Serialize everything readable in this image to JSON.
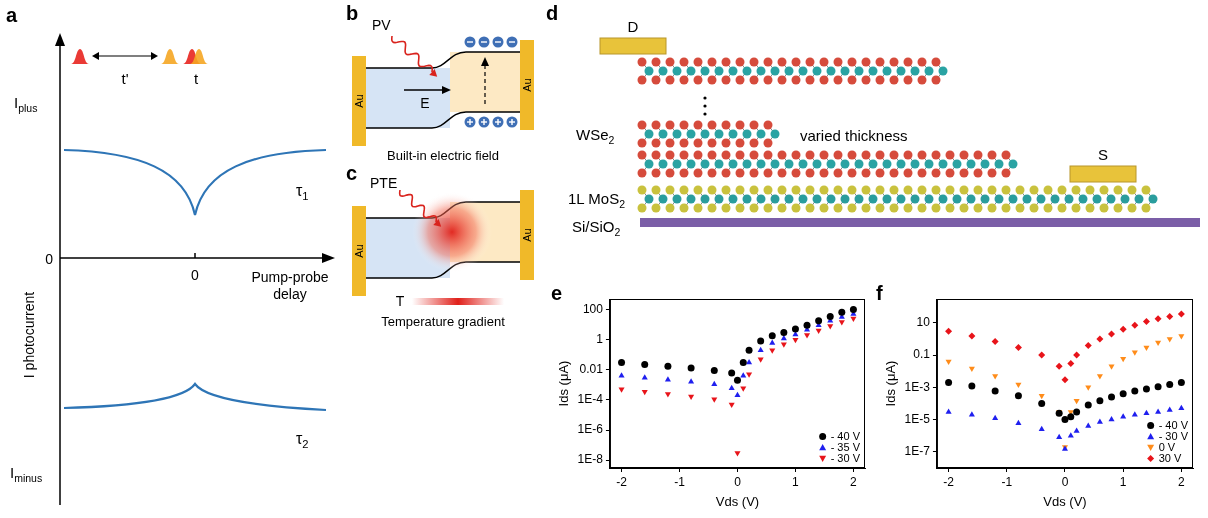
{
  "diagrams": {
    "a": {
      "label": "a",
      "top_current": {
        "main": "I",
        "sub": "plus"
      },
      "bottom_current": {
        "main": "I",
        "sub": "minus"
      },
      "y_axis_title": "I photocurrent",
      "y_zero": "0",
      "x_zero": "0",
      "x_axis_title": "Pump-probe delay",
      "pulse_delay_labels": [
        "t'",
        "t"
      ],
      "curve_labels": [
        {
          "main": "τ",
          "sub": "1"
        },
        {
          "main": "τ",
          "sub": "2"
        }
      ]
    },
    "b": {
      "label": "b",
      "light": "PV",
      "field": "E",
      "contacts": [
        "Au",
        "Au"
      ],
      "caption": "Built-in electric field"
    },
    "c": {
      "label": "c",
      "light": "PTE",
      "contacts": [
        "Au",
        "Au"
      ],
      "temperature": "T",
      "caption": "Temperature gradient"
    },
    "d": {
      "label": "d",
      "drain": "D",
      "source": "S",
      "top_layer": {
        "main": "WSe",
        "sub": "2"
      },
      "thickness_note": "varied thickness",
      "bottom_layer": {
        "main": "1L MoS",
        "sub": "2"
      },
      "substrate": {
        "main": "Si/SiO",
        "sub": "2"
      }
    }
  },
  "chart_data": [
    {
      "label": "e",
      "type": "scatter",
      "x_label": "Vds (V)",
      "y_label": "Ids (μA)",
      "log": "y",
      "grid": false,
      "legend": "lower right",
      "xlim": [
        -2.2,
        2.2
      ],
      "xticks": [
        -2,
        -1,
        0,
        1,
        2
      ],
      "ylim": [
        3e-09,
        500
      ],
      "yticks": [
        {
          "value": 1e-08,
          "label": "1E-8"
        },
        {
          "value": 1e-06,
          "label": "1E-6"
        },
        {
          "value": 0.0001,
          "label": "1E-4"
        },
        0.01,
        1,
        100
      ],
      "x": [
        -2,
        -1.6,
        -1.2,
        -0.8,
        -0.4,
        -0.1,
        0,
        0.1,
        0.2,
        0.4,
        0.6,
        0.8,
        1.0,
        1.2,
        1.4,
        1.6,
        1.8,
        2.0
      ],
      "series": [
        {
          "name": "- 40 V",
          "color": "#000000",
          "marker": "circle",
          "values": [
            0.03,
            0.022,
            0.017,
            0.013,
            0.009,
            0.006,
            0.002,
            0.03,
            0.2,
            0.8,
            1.8,
            3,
            5,
            9,
            18,
            35,
            65,
            100
          ]
        },
        {
          "name": "- 35 V",
          "color": "#1f1fef",
          "marker": "triangle",
          "values": [
            0.004,
            0.003,
            0.0022,
            0.0016,
            0.0011,
            0.0006,
            0.0002,
            0.004,
            0.03,
            0.2,
            0.6,
            1.2,
            2.2,
            4.5,
            9,
            18,
            32,
            50
          ]
        },
        {
          "name": "- 30 V",
          "color": "#e8141a",
          "marker": "triangle_down",
          "values": [
            0.0005,
            0.00035,
            0.00025,
            0.00017,
            0.00011,
            5e-05,
            3e-08,
            0.0006,
            0.005,
            0.05,
            0.2,
            0.5,
            1,
            2,
            4,
            8,
            15,
            25
          ]
        }
      ]
    },
    {
      "label": "f",
      "type": "scatter",
      "x_label": "Vds (V)",
      "y_label": "Ids (μA)",
      "log": "y",
      "grid": false,
      "legend": "lower right",
      "xlim": [
        -2.2,
        2.2
      ],
      "xticks": [
        -2,
        -1,
        0,
        1,
        2
      ],
      "ylim": [
        1e-08,
        300
      ],
      "yticks": [
        {
          "value": 1e-07,
          "label": "1E-7"
        },
        {
          "value": 1e-05,
          "label": "1E-5"
        },
        {
          "value": 0.001,
          "label": "1E-3"
        },
        0.1,
        10
      ],
      "x": [
        -2,
        -1.6,
        -1.2,
        -0.8,
        -0.4,
        -0.1,
        0,
        0.1,
        0.2,
        0.4,
        0.6,
        0.8,
        1.0,
        1.2,
        1.4,
        1.6,
        1.8,
        2.0
      ],
      "series": [
        {
          "name": "- 40 V",
          "color": "#000000",
          "marker": "circle",
          "values": [
            0.002,
            0.0012,
            0.0006,
            0.0003,
            0.0001,
            2.5e-05,
            1e-05,
            1.5e-05,
            3e-05,
            8e-05,
            0.00015,
            0.00025,
            0.0004,
            0.0006,
            0.0008,
            0.0011,
            0.0015,
            0.002
          ]
        },
        {
          "name": "- 30 V",
          "color": "#1f1fef",
          "marker": "triangle",
          "values": [
            3e-05,
            2e-05,
            1.2e-05,
            6e-06,
            2.5e-06,
            8e-07,
            1.5e-07,
            1e-06,
            2e-06,
            4e-06,
            7e-06,
            1e-05,
            1.5e-05,
            2e-05,
            2.5e-05,
            3e-05,
            4e-05,
            5e-05
          ]
        },
        {
          "name": "0 V",
          "color": "#ff8c1a",
          "marker": "triangle_down",
          "values": [
            0.04,
            0.015,
            0.005,
            0.0015,
            0.0003,
            3e-05,
            2e-07,
            3e-05,
            0.00015,
            0.001,
            0.005,
            0.02,
            0.06,
            0.15,
            0.3,
            0.6,
            1,
            1.5
          ]
        },
        {
          "name": "30 V",
          "color": "#e8141a",
          "marker": "diamond",
          "values": [
            3,
            1.5,
            0.7,
            0.3,
            0.1,
            0.02,
            0.003,
            0.03,
            0.1,
            0.4,
            1,
            2,
            4,
            7,
            12,
            18,
            25,
            35
          ]
        }
      ]
    }
  ]
}
